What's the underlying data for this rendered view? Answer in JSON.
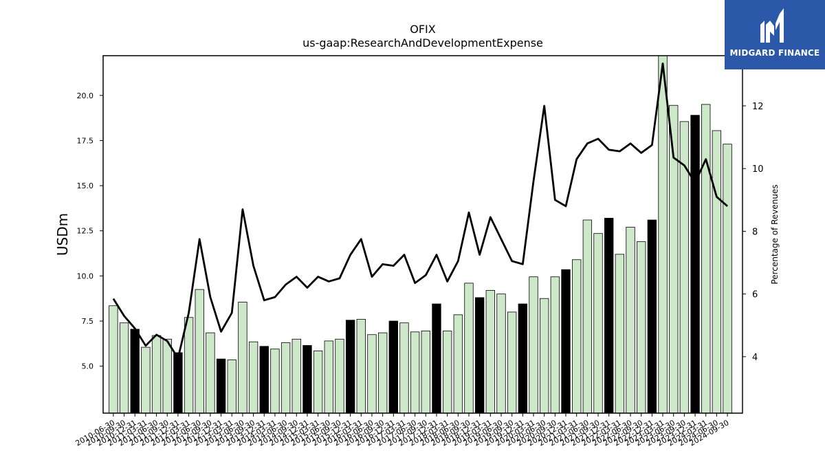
{
  "brand": {
    "name": "MIDGARD FINANCE",
    "bg_color": "#2b58a8"
  },
  "chart_data": {
    "type": "bar+line",
    "title": "OFIX",
    "subtitle": "us-gaap:ResearchAndDevelopmentExpense",
    "ylabel": "USDm",
    "ylabel_right": "Percentage of Revenues",
    "ylim": [
      2.4,
      22.2
    ],
    "ylim_right": [
      2.2,
      13.6
    ],
    "yticks": [
      "5.0",
      "7.5",
      "10.0",
      "12.5",
      "15.0",
      "17.5",
      "20.0"
    ],
    "yticks_right": [
      "4",
      "6",
      "8",
      "10",
      "12"
    ],
    "bar_color": "#cce8c8",
    "highlight_color": "#000000",
    "line_color": "#000000",
    "categories": [
      "2010-06-30",
      "2010-09-30",
      "2010-12-31",
      "2011-03-31",
      "2011-06-30",
      "2011-09-30",
      "2011-12-31",
      "2012-03-31",
      "2012-06-30",
      "2012-09-30",
      "2012-12-31",
      "2013-03-31",
      "2013-06-30",
      "2013-09-30",
      "2013-12-31",
      "2014-03-31",
      "2014-06-30",
      "2014-09-30",
      "2014-12-31",
      "2015-03-31",
      "2015-06-30",
      "2015-09-30",
      "2015-12-31",
      "2016-03-31",
      "2016-06-30",
      "2016-09-30",
      "2016-12-31",
      "2017-03-31",
      "2017-06-30",
      "2017-09-30",
      "2017-12-31",
      "2018-03-31",
      "2018-06-30",
      "2018-09-30",
      "2018-12-31",
      "2019-03-31",
      "2019-06-30",
      "2019-09-30",
      "2019-12-31",
      "2020-03-31",
      "2020-06-30",
      "2020-09-30",
      "2020-12-31",
      "2021-03-31",
      "2021-06-30",
      "2021-09-30",
      "2021-12-31",
      "2022-03-31",
      "2022-06-30",
      "2022-09-30",
      "2022-12-31",
      "2023-03-31",
      "2023-06-30",
      "2023-09-30",
      "2023-12-31",
      "2024-03-31",
      "2024-06-30",
      "2024-09-30"
    ],
    "series": [
      {
        "values": [
          8.35,
          7.4,
          7.05,
          6.05,
          6.7,
          6.5,
          5.75,
          7.7,
          9.25,
          6.85,
          5.4,
          5.35,
          8.55,
          6.35,
          6.1,
          5.95,
          6.3,
          6.5,
          6.15,
          5.85,
          6.4,
          6.5,
          7.55,
          7.6,
          6.75,
          6.85,
          7.5,
          7.4,
          6.9,
          6.95,
          8.45,
          6.95,
          7.85,
          9.6,
          8.8,
          9.2,
          9.0,
          8.0,
          8.45,
          9.95,
          8.75,
          9.95,
          10.35,
          10.9,
          13.1,
          12.35,
          13.2,
          11.2,
          12.7,
          11.9,
          13.1,
          22.2,
          19.45,
          18.55,
          18.9,
          19.5,
          18.05,
          17.3
        ],
        "highlight": [
          false,
          false,
          true,
          false,
          false,
          false,
          true,
          false,
          false,
          false,
          true,
          false,
          false,
          false,
          true,
          false,
          false,
          false,
          true,
          false,
          false,
          false,
          true,
          false,
          false,
          false,
          true,
          false,
          false,
          false,
          true,
          false,
          false,
          false,
          true,
          false,
          false,
          false,
          true,
          false,
          false,
          false,
          true,
          false,
          false,
          false,
          true,
          false,
          false,
          false,
          true,
          false,
          false,
          false,
          true,
          false,
          false,
          false
        ]
      },
      {
        "values": [
          5.85,
          5.3,
          4.9,
          4.35,
          4.7,
          4.5,
          3.95,
          5.4,
          7.75,
          5.9,
          4.8,
          5.4,
          8.7,
          6.9,
          5.8,
          5.9,
          6.3,
          6.55,
          6.2,
          6.55,
          6.4,
          6.5,
          7.25,
          7.75,
          6.55,
          6.95,
          6.9,
          7.25,
          6.35,
          6.6,
          7.25,
          6.4,
          7.05,
          8.6,
          7.25,
          8.45,
          7.75,
          7.05,
          6.95,
          9.6,
          12.0,
          9.0,
          8.8,
          10.3,
          10.8,
          10.95,
          10.6,
          10.55,
          10.8,
          10.5,
          10.75,
          13.35,
          10.35,
          10.1,
          9.55,
          10.3,
          9.1,
          8.8
        ]
      }
    ]
  }
}
